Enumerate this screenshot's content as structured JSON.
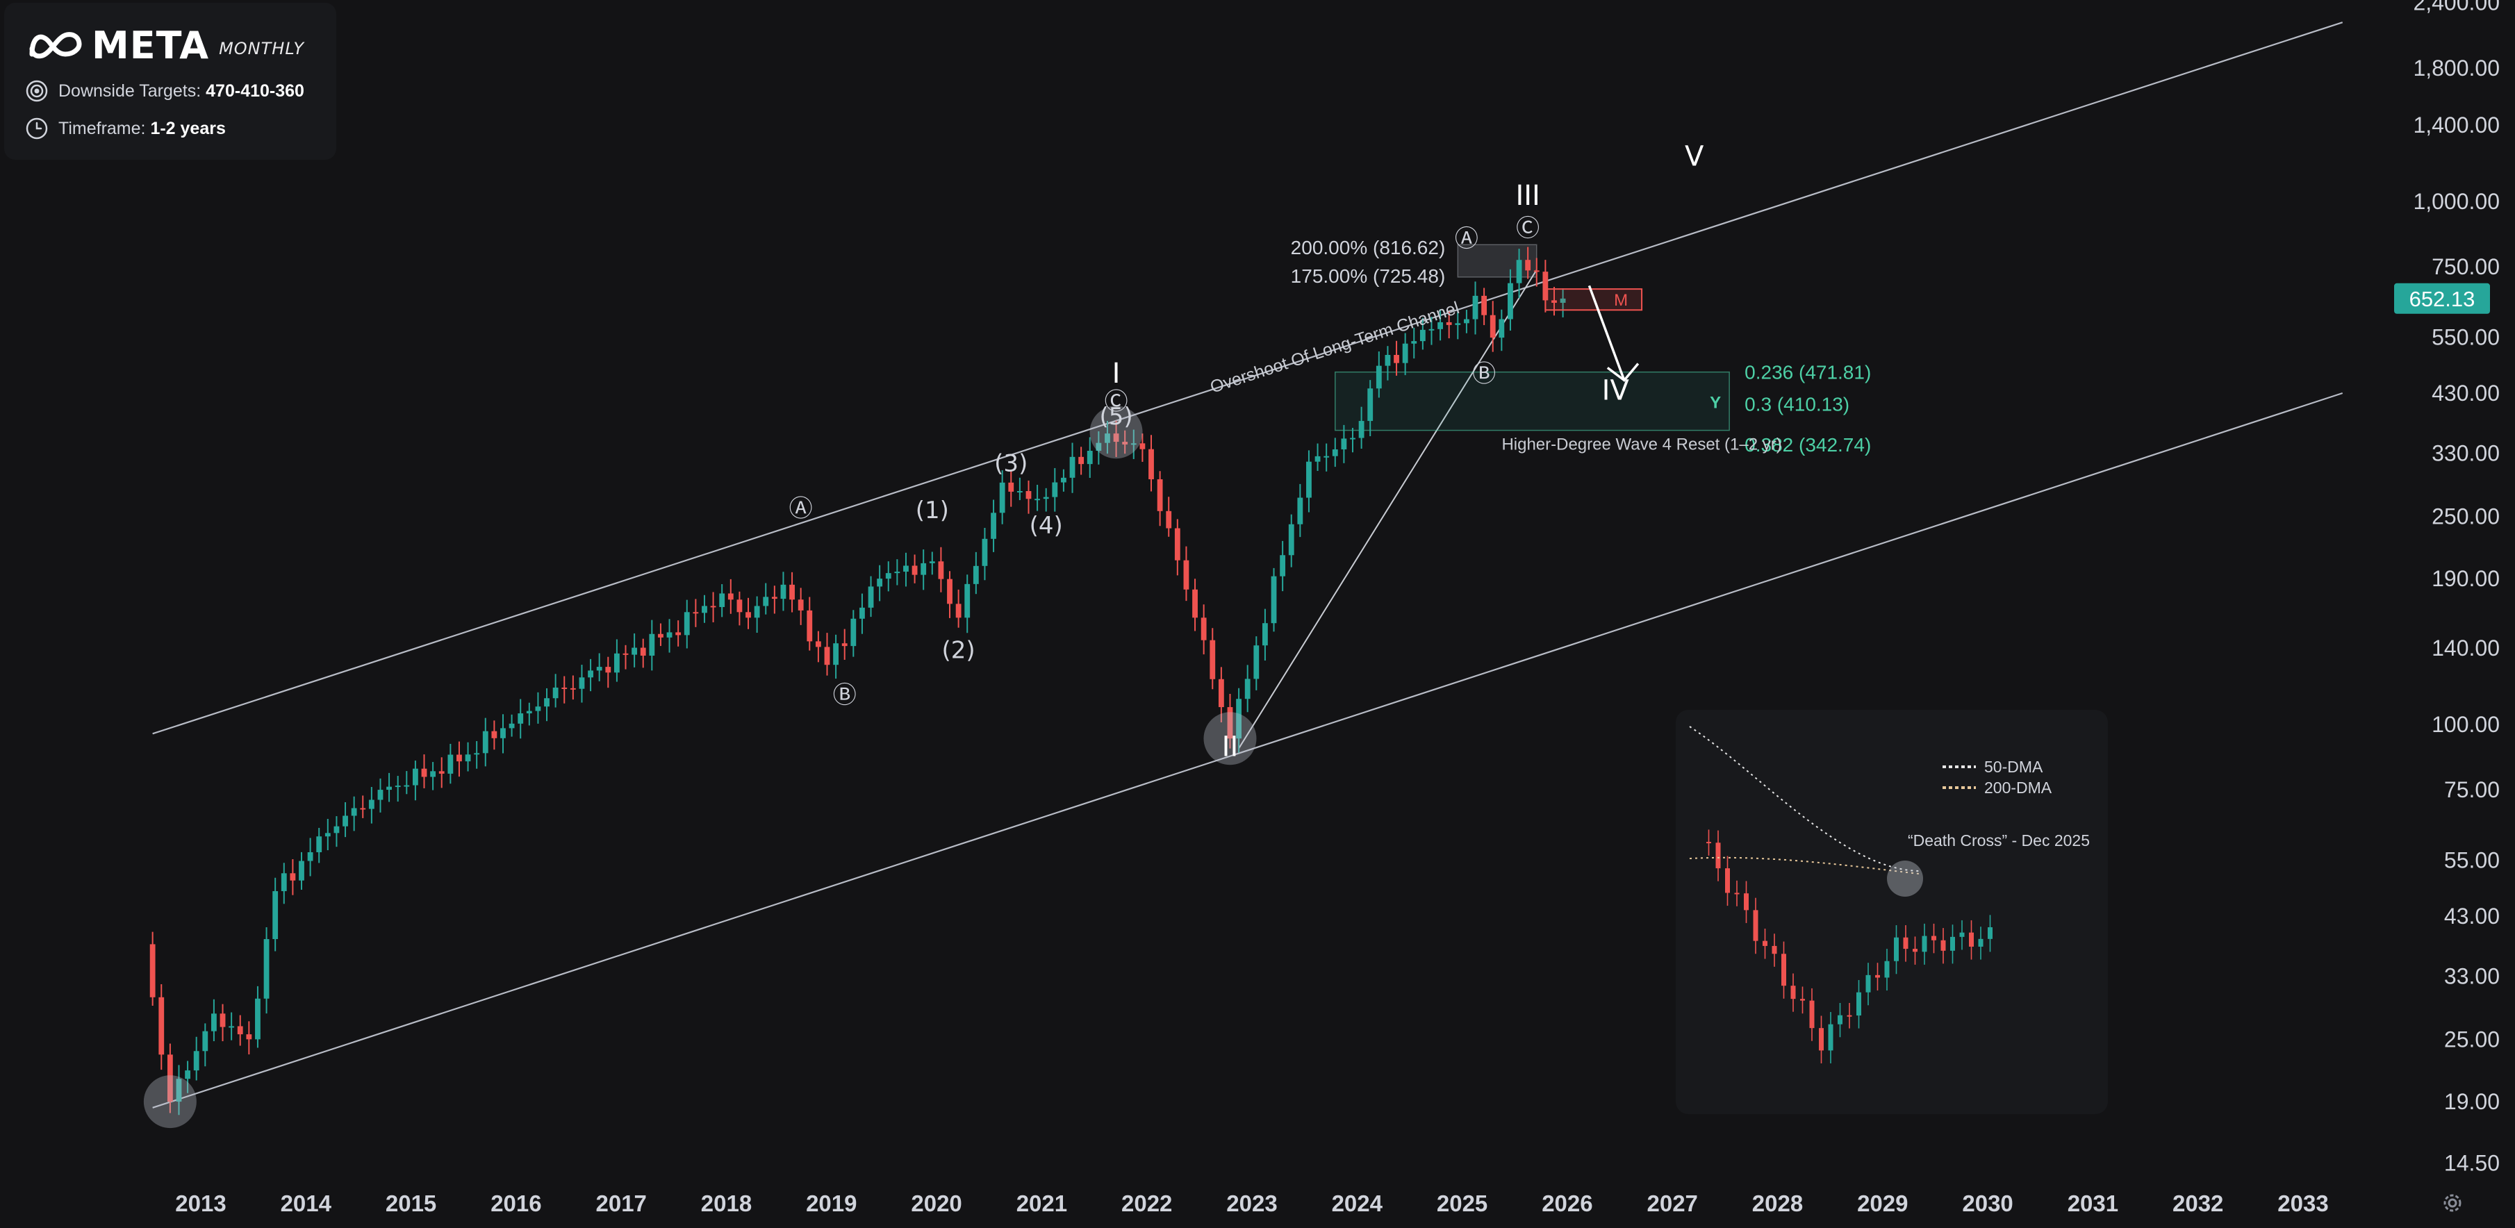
{
  "header": {
    "brand": "META",
    "timeframe": "MONTHLY",
    "targets_label": "Downside Targets:",
    "targets_value": "470-410-360",
    "timeframe_label": "Timeframe:",
    "timeframe_value": "1-2 years",
    "icons": [
      "meta-logo-icon",
      "target-icon",
      "clock-icon",
      "settings-icon"
    ]
  },
  "colors": {
    "background": "#131315",
    "up": "#26a69a",
    "down": "#ef5350",
    "channel": "#b8bcc6",
    "fib": "#4dd0a6",
    "price_tag": "#26a69a"
  },
  "chart_data": {
    "type": "candlestick",
    "y_scale": "log",
    "ylim": [
      13.5,
      2500
    ],
    "xlim": [
      "2012-05",
      "2033-06"
    ],
    "x_ticks": [
      "2013",
      "2014",
      "2015",
      "2016",
      "2017",
      "2018",
      "2019",
      "2020",
      "2021",
      "2022",
      "2023",
      "2024",
      "2025",
      "2026",
      "2027",
      "2028",
      "2029",
      "2030",
      "2031",
      "2032",
      "2033"
    ],
    "y_ticks": [
      "2,400.00",
      "1,800.00",
      "1,400.00",
      "1,000.00",
      "750.00",
      "550.00",
      "430.00",
      "330.00",
      "250.00",
      "190.00",
      "140.00",
      "100.00",
      "75.00",
      "55.00",
      "43.00",
      "33.00",
      "25.00",
      "19.00",
      "14.50"
    ],
    "y_tick_values": [
      2400,
      1800,
      1400,
      1000,
      750,
      550,
      430,
      330,
      250,
      190,
      140,
      100,
      75,
      55,
      43,
      33,
      25,
      19,
      14.5
    ],
    "last_price": "652.13",
    "last_price_value": 652.13,
    "anchors": [
      [
        "2012-06",
        38
      ],
      [
        "2012-09",
        19
      ],
      [
        "2013-02",
        28
      ],
      [
        "2013-06",
        25
      ],
      [
        "2013-09",
        48
      ],
      [
        "2014-03",
        62
      ],
      [
        "2014-09",
        75
      ],
      [
        "2015-06",
        85
      ],
      [
        "2016-01",
        105
      ],
      [
        "2016-08",
        123
      ],
      [
        "2017-06",
        150
      ],
      [
        "2017-12",
        178
      ],
      [
        "2018-03",
        160
      ],
      [
        "2018-07",
        185
      ],
      [
        "2018-12",
        130
      ],
      [
        "2019-06",
        190
      ],
      [
        "2019-12",
        205
      ],
      [
        "2020-03",
        160
      ],
      [
        "2020-08",
        290
      ],
      [
        "2020-12",
        270
      ],
      [
        "2021-08",
        360
      ],
      [
        "2021-12",
        336
      ],
      [
        "2022-06",
        160
      ],
      [
        "2022-10",
        94
      ],
      [
        "2023-07",
        318
      ],
      [
        "2023-12",
        353
      ],
      [
        "2024-03",
        485
      ],
      [
        "2024-09",
        570
      ],
      [
        "2024-12",
        585
      ],
      [
        "2025-02",
        660
      ],
      [
        "2025-04",
        549
      ],
      [
        "2025-07",
        773
      ],
      [
        "2025-08",
        738
      ],
      [
        "2025-09",
        734
      ],
      [
        "2025-10",
        647
      ],
      [
        "2025-11",
        640
      ],
      [
        "2025-12",
        652
      ]
    ],
    "channel": {
      "upper": [
        [
          "2012-07",
          96
        ],
        [
          "2033-05",
          2200
        ]
      ],
      "lower": [
        [
          "2012-07",
          18.5
        ],
        [
          "2033-05",
          430
        ]
      ]
    },
    "trendline_wave2": [
      [
        "2022-11",
        90
      ],
      [
        "2025-09",
        740
      ]
    ],
    "wave_labels": [
      {
        "text": "I",
        "x": "2021-09",
        "y": 450
      },
      {
        "text": "Ⓒ",
        "x": "2021-09",
        "y": 400
      },
      {
        "text": "(5)",
        "x": "2021-09",
        "y": 375
      },
      {
        "text": "Ⓐ",
        "x": "2018-09",
        "y": 250
      },
      {
        "text": "Ⓑ",
        "x": "2019-02",
        "y": 110
      },
      {
        "text": "(1)",
        "x": "2019-12",
        "y": 248
      },
      {
        "text": "(2)",
        "x": "2020-03",
        "y": 134
      },
      {
        "text": "(3)",
        "x": "2020-09",
        "y": 305
      },
      {
        "text": "(4)",
        "x": "2021-01",
        "y": 232
      },
      {
        "text": "II",
        "x": "2022-10",
        "y": 87
      },
      {
        "text": "Ⓐ",
        "x": "2025-01",
        "y": 820
      },
      {
        "text": "Ⓑ",
        "x": "2025-03",
        "y": 452
      },
      {
        "text": "Ⓒ",
        "x": "2025-08",
        "y": 858
      },
      {
        "text": "III",
        "x": "2025-08",
        "y": 985
      },
      {
        "text": "IV",
        "x": "2026-06",
        "y": 418
      },
      {
        "text": "V",
        "x": "2027-03",
        "y": 1170
      }
    ],
    "annotations": [
      {
        "text": "Overshoot Of Long-Term Channel",
        "x": "2022-08",
        "y": 430
      },
      {
        "text": "Higher-Degree Wave 4 Reset (1–2 yr)",
        "x": "2026-09",
        "y": 335
      }
    ],
    "extension_box": {
      "from": "2025-00",
      "to": "2025-09",
      "top": 816.62,
      "bottom": 725.48,
      "labels": [
        "200.00% (816.62)",
        "175.00% (725.48)"
      ]
    },
    "m_box": {
      "from": "2025-10",
      "to": "2026-09",
      "top": 680,
      "bottom": 620,
      "label": "M"
    },
    "target_zone": {
      "from": "2023-10",
      "to": "2027-07",
      "top": 471.81,
      "bottom": 365,
      "label": "Y",
      "levels": [
        "0.236 (471.81)",
        "0.3 (410.13)",
        "0.382 (342.74)"
      ],
      "level_values": [
        471.81,
        410.13,
        342.74
      ]
    },
    "inset": {
      "legend": [
        "50-DMA",
        "200-DMA"
      ],
      "note": "“Death Cross” - Dec 2025"
    }
  }
}
